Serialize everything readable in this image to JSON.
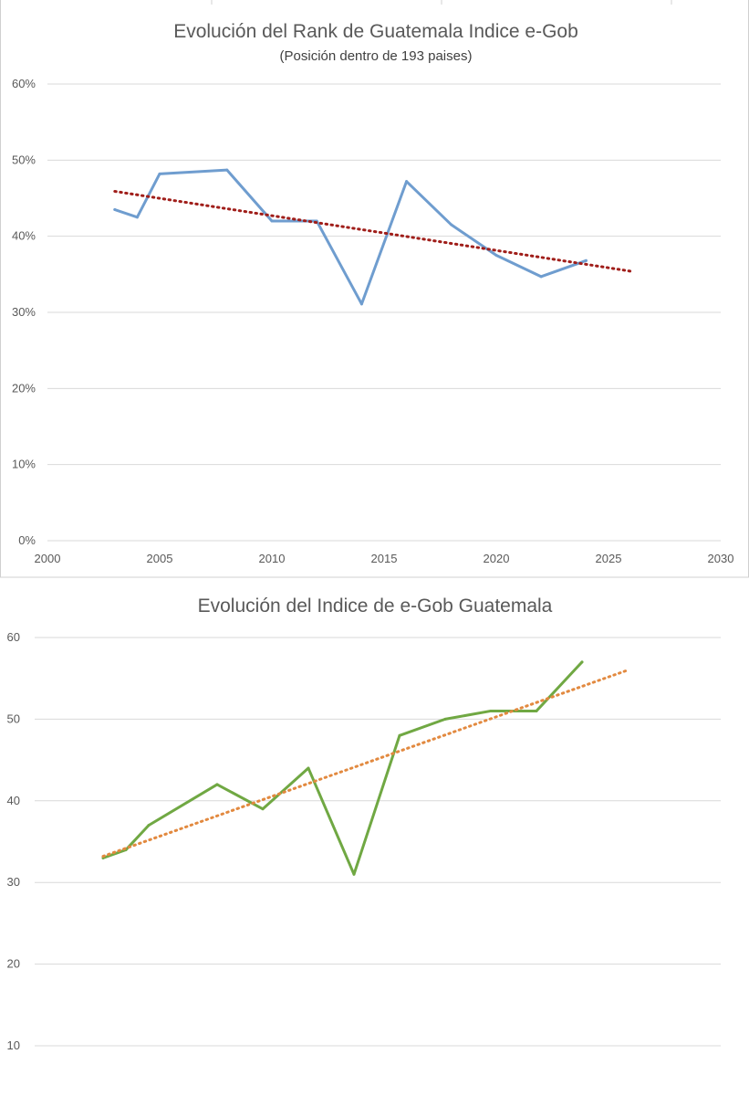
{
  "colors": {
    "rank_series": "#6f9dcf",
    "rank_trend": "#a01e1a",
    "index_series": "#70a843",
    "index_trend": "#e2893f",
    "grid": "#d9d9d9",
    "text": "#595959"
  },
  "chart_data": [
    {
      "type": "scatter",
      "title": "Evolución del Rank de Guatemala Indice e-Gob",
      "subtitle": "(Posición dentro de 193 paises)",
      "xlabel": "",
      "ylabel": "",
      "xlim": [
        2000,
        2030
      ],
      "ylim": [
        0,
        0.6
      ],
      "x_ticks": [
        2000,
        2005,
        2010,
        2015,
        2020,
        2025,
        2030
      ],
      "x_tick_labels": [
        "2000",
        "2005",
        "2010",
        "2015",
        "2020",
        "2025",
        "2030"
      ],
      "y_ticks": [
        0,
        0.1,
        0.2,
        0.3,
        0.4,
        0.5,
        0.6
      ],
      "y_tick_labels": [
        "0%",
        "10%",
        "20%",
        "30%",
        "40%",
        "50%",
        "60%"
      ],
      "grid": true,
      "legend": "none",
      "series": [
        {
          "style": "line",
          "x": [
            2003,
            2004,
            2005,
            2008,
            2010,
            2012,
            2014,
            2016,
            2018,
            2020,
            2022,
            2024
          ],
          "y": [
            0.435,
            0.425,
            0.482,
            0.487,
            0.42,
            0.42,
            0.311,
            0.472,
            0.415,
            0.375,
            0.347,
            0.368
          ]
        },
        {
          "style": "trendline-dotted",
          "x": [
            2003,
            2026
          ],
          "y": [
            0.459,
            0.354
          ]
        }
      ]
    },
    {
      "type": "scatter",
      "title": "Evolución del Indice de e-Gob Guatemala",
      "xlabel": "",
      "ylabel": "",
      "xlim": [
        2000,
        2030
      ],
      "y_ticks": [
        10,
        20,
        30,
        40,
        50,
        60
      ],
      "y_tick_labels": [
        "10",
        "20",
        "30",
        "40",
        "50",
        "60"
      ],
      "grid": true,
      "legend": "none",
      "series": [
        {
          "style": "line",
          "x": [
            2003,
            2004,
            2005,
            2008,
            2010,
            2012,
            2014,
            2016,
            2018,
            2020,
            2022,
            2024
          ],
          "y": [
            33,
            34,
            37,
            42,
            39,
            44,
            31,
            48,
            50,
            51,
            51,
            57
          ]
        },
        {
          "style": "trendline-dotted",
          "x": [
            2003,
            2026
          ],
          "y": [
            33.2,
            56
          ]
        }
      ]
    }
  ]
}
